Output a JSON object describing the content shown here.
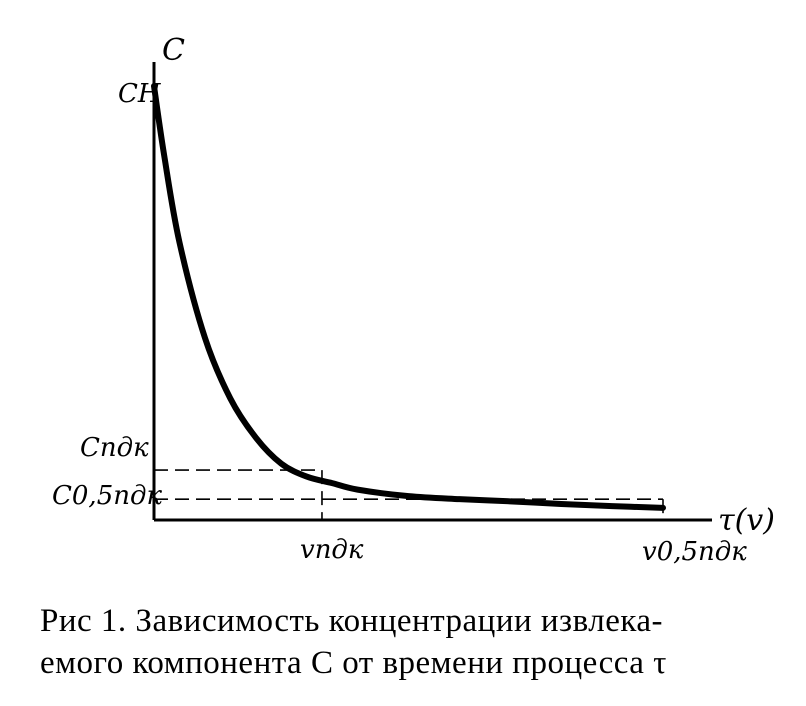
{
  "chart_data": {
    "type": "line",
    "ylabel": "C",
    "xlabel": "τ(v)",
    "y_ticks": {
      "start": "CН",
      "pdk": "Cпдк",
      "half_pdk": "C0,5пдк"
    },
    "x_ticks": {
      "pdk": "vпдк",
      "half_pdk": "v0,5пдк"
    },
    "series": [
      {
        "x": [
          0,
          0.02,
          0.05,
          0.1,
          0.15,
          0.2,
          0.25,
          0.3,
          0.35,
          0.4,
          0.5,
          0.6,
          0.7,
          0.8,
          0.9,
          1.0
        ],
        "y": [
          1.0,
          0.84,
          0.64,
          0.42,
          0.28,
          0.19,
          0.13,
          0.1,
          0.085,
          0.07,
          0.055,
          0.048,
          0.043,
          0.037,
          0.032,
          0.028
        ]
      }
    ],
    "reference_lines": [
      {
        "x": 0.33,
        "y": 0.115
      },
      {
        "x": 1.0,
        "y": 0.048
      }
    ]
  },
  "caption": {
    "line1": "Рис 1. Зависимость концентрации извлека-",
    "line2": "емого компонента С от времени процесса τ"
  },
  "colors": {
    "ink": "#000000",
    "background": "#ffffff"
  }
}
